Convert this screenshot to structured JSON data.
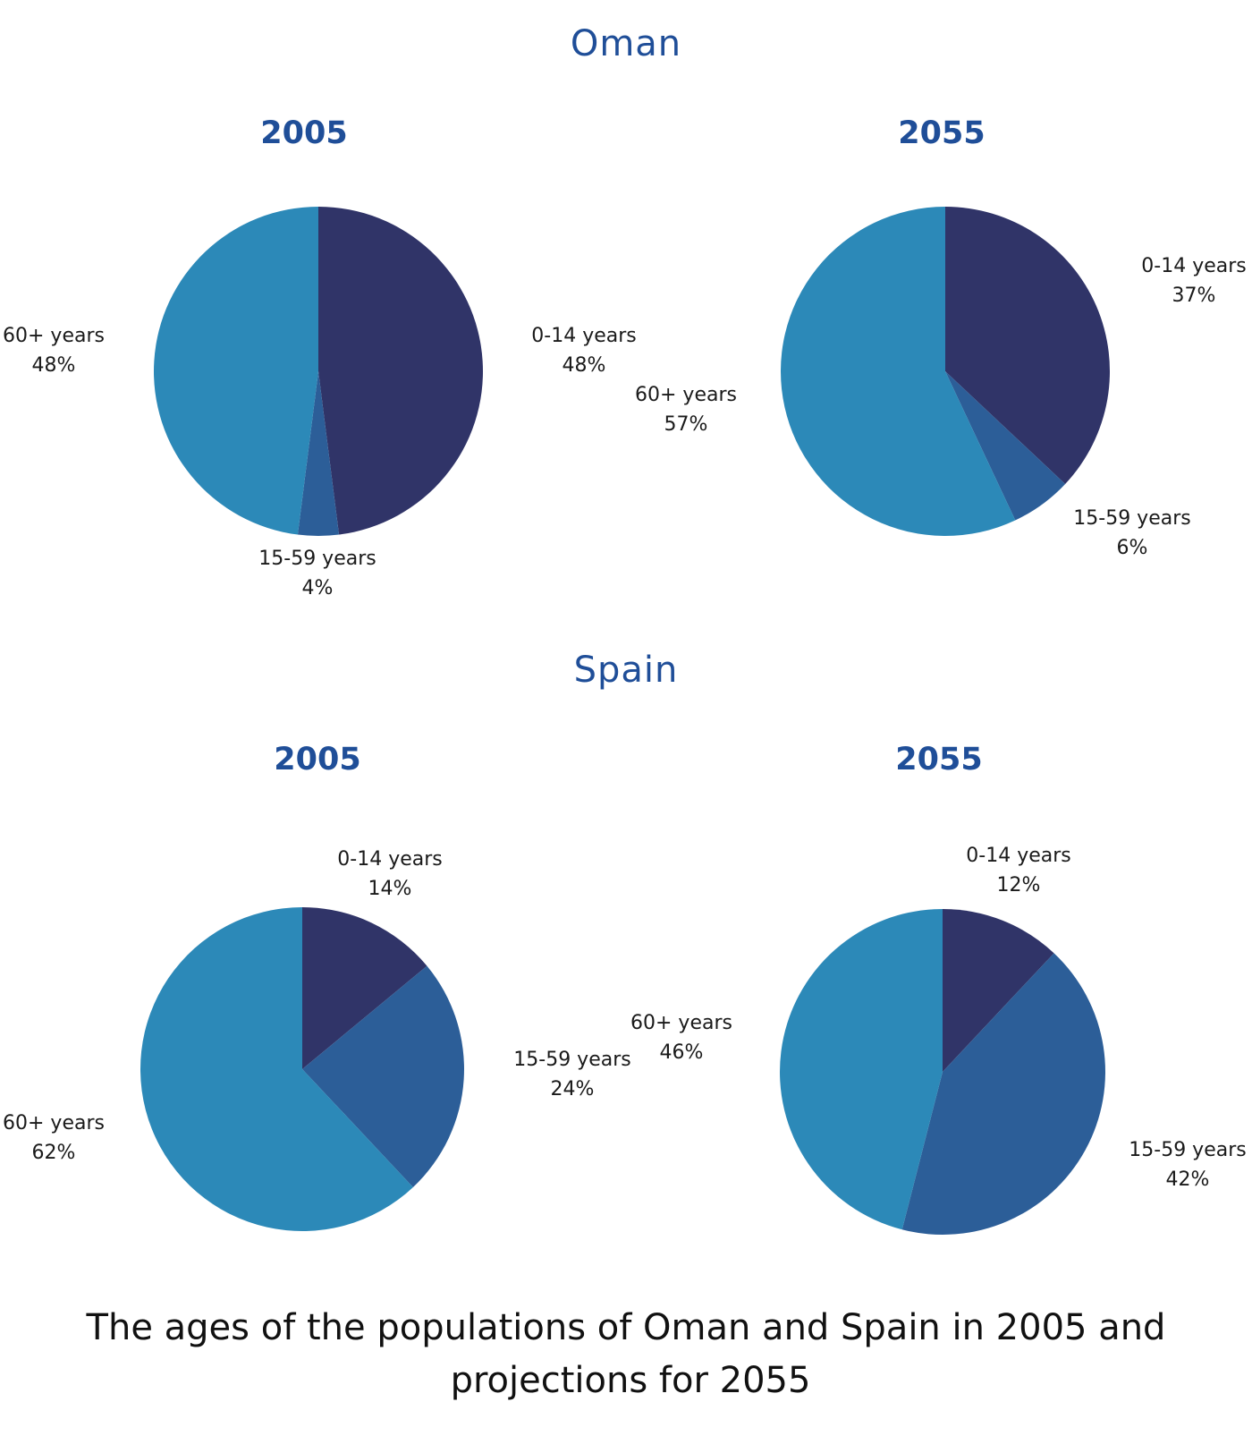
{
  "caption_lines": [
    "The ages of the populations of Oman and Spain in 2005 and",
    "projections for 2055"
  ],
  "colors": {
    "title": "#1f4e98",
    "age_0_14": "#303468",
    "age_15_59": "#2c5e98",
    "age_60_plus": "#2c89b8",
    "text": "#1a1a1a"
  },
  "chart_data": [
    {
      "type": "pie",
      "country": "Oman",
      "title": "2005",
      "slices": [
        {
          "label": "0-14 years",
          "value": 48,
          "display": "48%"
        },
        {
          "label": "15-59 years",
          "value": 4,
          "display": "4%"
        },
        {
          "label": "60+ years",
          "value": 48,
          "display": "48%"
        }
      ]
    },
    {
      "type": "pie",
      "country": "Oman",
      "title": "2055",
      "slices": [
        {
          "label": "0-14 years",
          "value": 37,
          "display": "37%"
        },
        {
          "label": "15-59 years",
          "value": 6,
          "display": "6%"
        },
        {
          "label": "60+ years",
          "value": 57,
          "display": "57%"
        }
      ]
    },
    {
      "type": "pie",
      "country": "Spain",
      "title": "2005",
      "slices": [
        {
          "label": "0-14 years",
          "value": 14,
          "display": "14%"
        },
        {
          "label": "15-59 years",
          "value": 24,
          "display": "24%"
        },
        {
          "label": "60+ years",
          "value": 62,
          "display": "62%"
        }
      ]
    },
    {
      "type": "pie",
      "country": "Spain",
      "title": "2055",
      "slices": [
        {
          "label": "0-14 years",
          "value": 12,
          "display": "12%"
        },
        {
          "label": "15-59 years",
          "value": 42,
          "display": "42%"
        },
        {
          "label": "60+ years",
          "value": 46,
          "display": "46%"
        }
      ]
    }
  ]
}
